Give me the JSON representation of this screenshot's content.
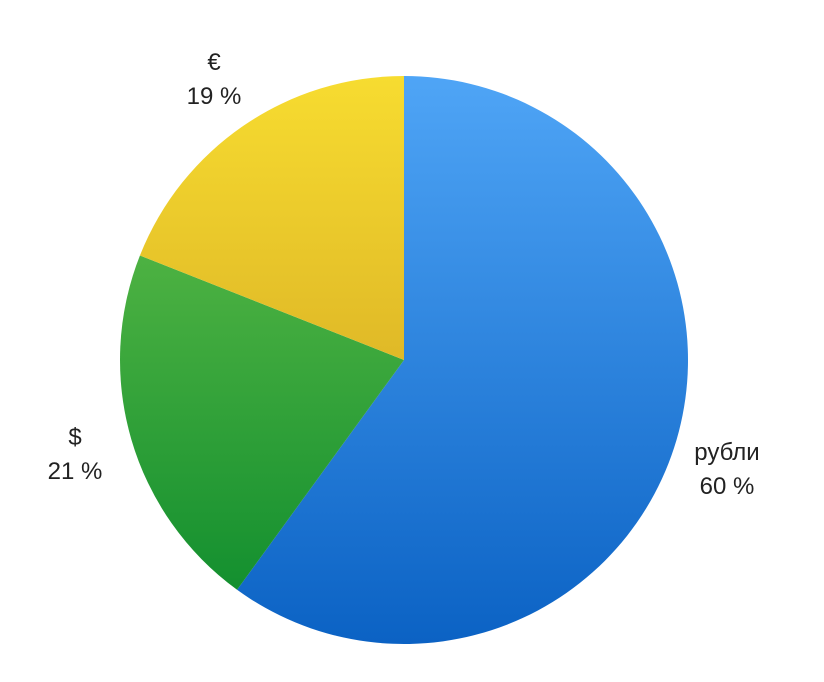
{
  "chart_data": {
    "type": "pie",
    "title": "",
    "start": "top",
    "direction": "clockwise",
    "slices": [
      {
        "label": "рубли",
        "value": 60,
        "value_label": "60 %",
        "color_top": "#4fa5f6",
        "color_bottom": "#0b62c4"
      },
      {
        "label": "$",
        "value": 21,
        "value_label": "21 %",
        "color_top": "#6cc44c",
        "color_bottom": "#0a8a2c"
      },
      {
        "label": "€",
        "value": 19,
        "value_label": "19 %",
        "color_top": "#f7dc30",
        "color_bottom": "#c8961e"
      }
    ]
  }
}
